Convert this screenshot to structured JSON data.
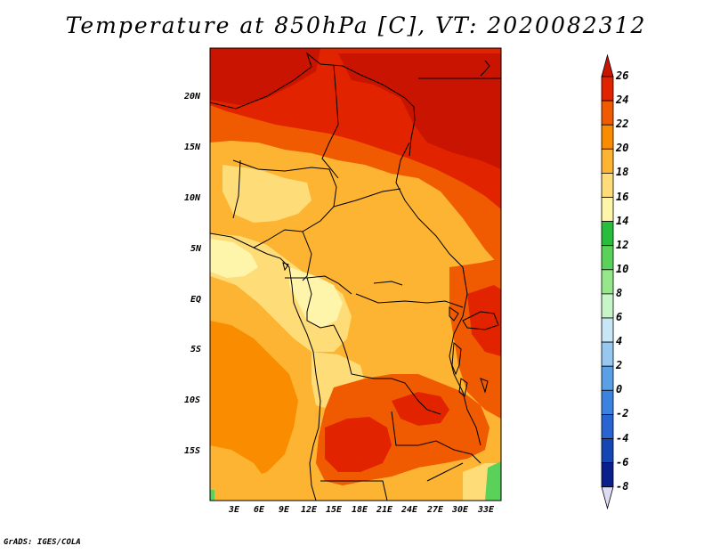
{
  "title": "Temperature at 850hPa [C], VT: 2020082312",
  "credit": "GrADS: IGES/COLA",
  "map": {
    "lat_labels": [
      "20N",
      "15N",
      "10N",
      "5N",
      "EQ",
      "5S",
      "10S",
      "15S"
    ],
    "lon_labels": [
      "3E",
      "6E",
      "9E",
      "12E",
      "15E",
      "18E",
      "21E",
      "24E",
      "27E",
      "30E",
      "33E"
    ]
  },
  "colorbar": {
    "labels": [
      "26",
      "24",
      "22",
      "20",
      "18",
      "16",
      "14",
      "12",
      "10",
      "8",
      "6",
      "4",
      "2",
      "0",
      "-2",
      "-4",
      "-6",
      "-8"
    ],
    "colors": [
      "#c81400",
      "#e12300",
      "#f05a00",
      "#fa8c00",
      "#fcb432",
      "#fedc78",
      "#fff5aa",
      "#28be3c",
      "#5ad25a",
      "#96e68c",
      "#c8f5c8",
      "#c8e6f5",
      "#96c8f0",
      "#5aa0e6",
      "#3c82e1",
      "#2864d2",
      "#1446b4",
      "#0a1e8c",
      "#000064"
    ],
    "over_color": "#c81400",
    "under_color": "#dcdcf5"
  }
}
